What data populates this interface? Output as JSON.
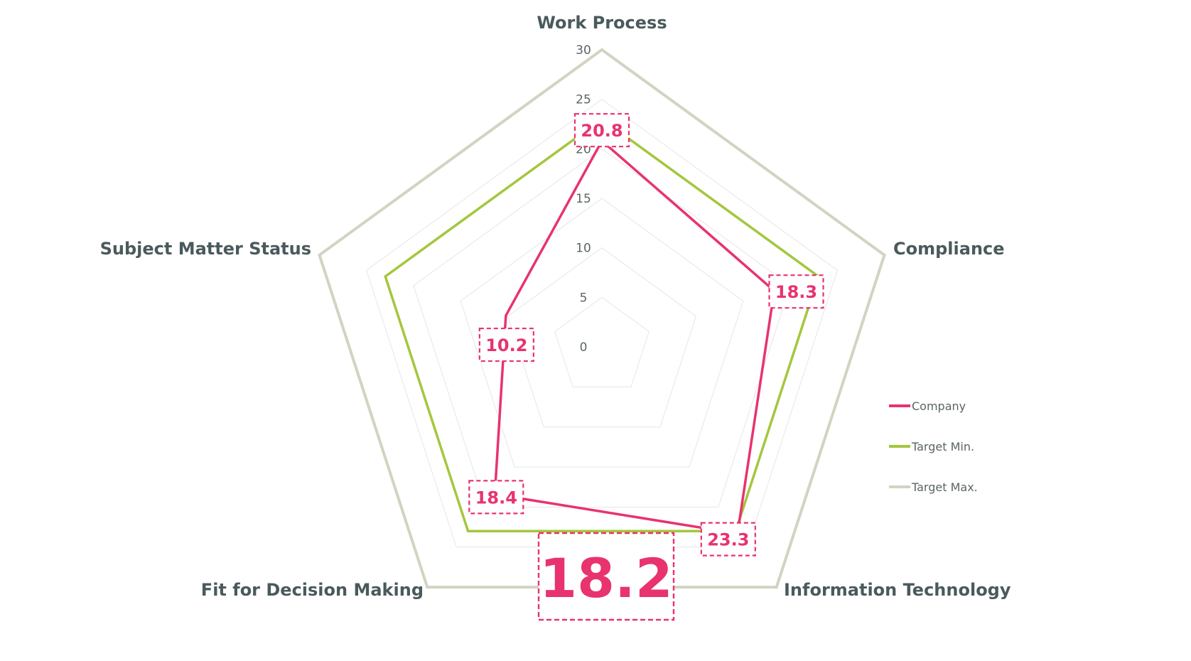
{
  "chart_data": {
    "type": "radar",
    "axes": [
      "Work Process",
      "Compliance",
      "Information Technology",
      "Fit for Decision Making",
      "Subject Matter Status"
    ],
    "rlim": [
      0,
      30
    ],
    "ticks": [
      "0",
      "5",
      "10",
      "15",
      "20",
      "25",
      "30"
    ],
    "grid": true,
    "legend_position": "right",
    "series": [
      {
        "name": "Company",
        "values": [
          20.8,
          18.3,
          23.3,
          18.4,
          10.2
        ],
        "color": "#e8336e",
        "data_labels": [
          "20.8",
          "18.3",
          "23.3",
          "18.4",
          "10.2"
        ]
      },
      {
        "name": "Target Min.",
        "values": [
          23,
          23,
          23,
          23,
          23
        ],
        "color": "#a3c73d"
      },
      {
        "name": "Target Max.",
        "values": [
          30,
          30,
          30,
          30,
          30
        ],
        "color": "#d3d3c2"
      }
    ],
    "highlight_value": "18.2",
    "highlight_color": "#e8336e"
  }
}
